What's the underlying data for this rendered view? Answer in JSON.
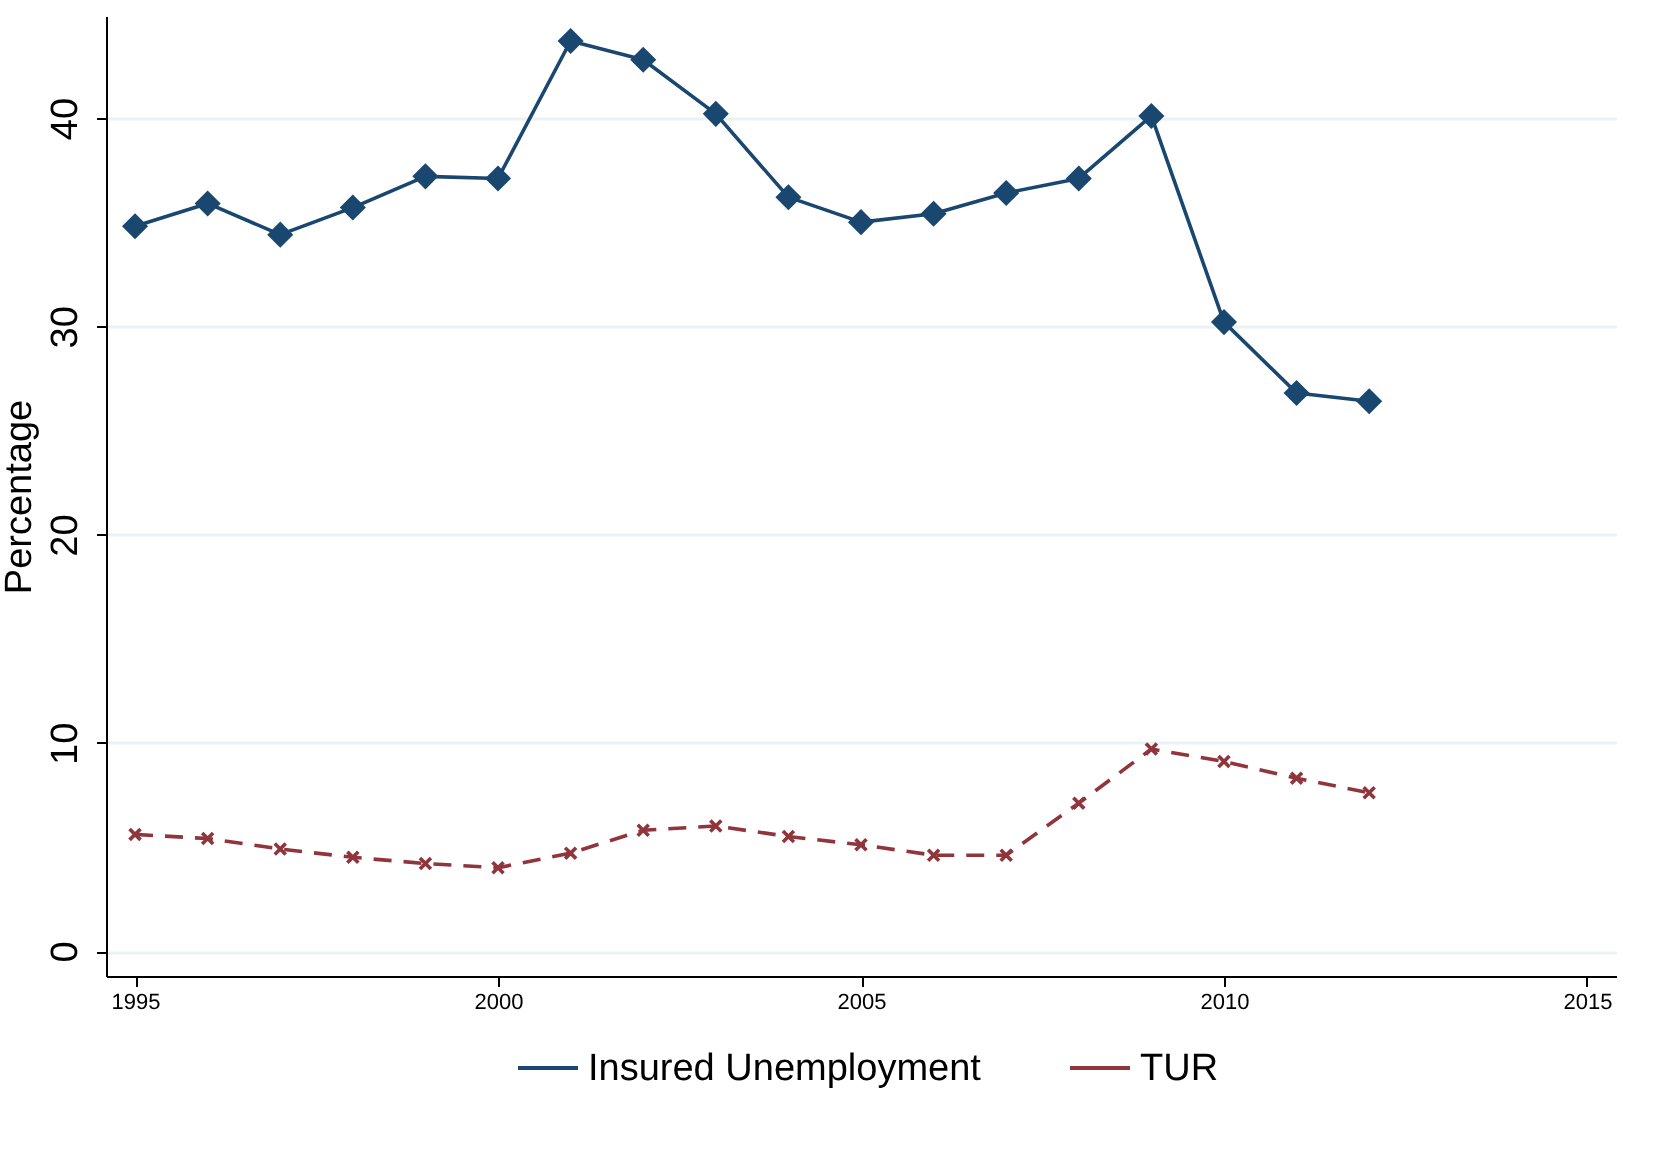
{
  "chart_data": {
    "type": "line",
    "ylabel": "Percentage",
    "x": [
      1995,
      1996,
      1997,
      1998,
      1999,
      2000,
      2001,
      2002,
      2003,
      2004,
      2005,
      2006,
      2007,
      2008,
      2009,
      2010,
      2011,
      2012
    ],
    "series": [
      {
        "name": "Insured Unemployment",
        "color": "#1a476f",
        "marker": "diamond",
        "line_style": "solid",
        "values": [
          34.8,
          35.9,
          34.4,
          35.7,
          37.2,
          37.1,
          43.7,
          42.8,
          40.2,
          36.2,
          35.0,
          35.4,
          36.4,
          37.1,
          40.1,
          30.2,
          26.8,
          26.4
        ]
      },
      {
        "name": "TUR",
        "color": "#90353b",
        "marker": "cross",
        "line_style": "dashed",
        "values": [
          5.6,
          5.4,
          4.9,
          4.5,
          4.2,
          4.0,
          4.7,
          5.8,
          6.0,
          5.5,
          5.1,
          4.6,
          4.6,
          7.1,
          9.7,
          9.1,
          8.3,
          7.6
        ]
      }
    ],
    "xlim": [
      1994.6,
      2015.4
    ],
    "xticks": [
      1995,
      2000,
      2005,
      2010,
      2015
    ],
    "ylim": [
      -1.2,
      44.9
    ],
    "yticks": [
      0,
      10,
      20,
      30,
      40
    ],
    "grid": "y",
    "legend": "bottom"
  }
}
